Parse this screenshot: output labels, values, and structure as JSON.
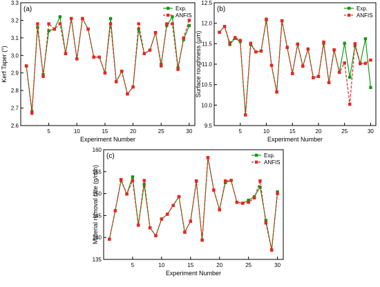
{
  "colors": {
    "exp": "#119911",
    "anfis": "#ee2222",
    "axis": "#000000"
  },
  "chart_data": [
    {
      "type": "line",
      "panel_label": "(a)",
      "xlabel": "Experiment Number",
      "ylabel": "Kerf Taper (°)",
      "xlim": [
        0,
        31
      ],
      "ylim": [
        2.6,
        3.3
      ],
      "xticks": [
        5,
        10,
        15,
        20,
        25,
        30
      ],
      "yticks": [
        2.6,
        2.7,
        2.8,
        2.9,
        3.0,
        3.1,
        3.2,
        3.3
      ],
      "ytick_decimals": 1,
      "legend_position": "top-right",
      "x": [
        1,
        2,
        3,
        4,
        5,
        6,
        7,
        8,
        9,
        10,
        11,
        12,
        13,
        14,
        15,
        16,
        17,
        18,
        19,
        20,
        21,
        22,
        23,
        24,
        25,
        26,
        27,
        28,
        29,
        30
      ],
      "series": [
        {
          "name": "Exp.",
          "color": "#119911",
          "marker": "square",
          "line": "solid",
          "values": [
            2.94,
            2.68,
            3.16,
            2.89,
            3.14,
            3.15,
            3.22,
            3.01,
            3.21,
            2.98,
            3.21,
            3.15,
            2.99,
            2.99,
            2.9,
            3.21,
            2.85,
            2.91,
            2.78,
            2.82,
            3.15,
            3.01,
            3.03,
            3.13,
            2.95,
            3.17,
            3.22,
            2.93,
            3.09,
            3.17
          ]
        },
        {
          "name": "ANFIS",
          "color": "#ee2222",
          "marker": "square",
          "line": "dashed",
          "values": [
            2.94,
            2.67,
            3.18,
            2.88,
            3.18,
            3.15,
            3.18,
            3.01,
            3.21,
            2.98,
            3.21,
            3.15,
            2.99,
            2.99,
            2.9,
            3.18,
            2.85,
            2.91,
            2.78,
            2.82,
            3.18,
            3.01,
            3.03,
            3.13,
            2.94,
            3.18,
            3.18,
            2.92,
            3.1,
            3.2
          ]
        }
      ]
    },
    {
      "type": "line",
      "panel_label": "(b)",
      "xlabel": "Experiment Number",
      "ylabel": "Surface roughness (µm)",
      "xlim": [
        0,
        31
      ],
      "ylim": [
        9.5,
        12.5
      ],
      "xticks": [
        5,
        10,
        15,
        20,
        25,
        30
      ],
      "yticks": [
        9.5,
        10.0,
        10.5,
        11.0,
        11.5,
        12.0,
        12.5
      ],
      "ytick_decimals": 1,
      "legend_position": "top-right",
      "x": [
        1,
        2,
        3,
        4,
        5,
        6,
        7,
        8,
        9,
        10,
        11,
        12,
        13,
        14,
        15,
        16,
        17,
        18,
        19,
        20,
        21,
        22,
        23,
        24,
        25,
        26,
        27,
        28,
        29,
        30
      ],
      "series": [
        {
          "name": "Exp.",
          "color": "#119911",
          "marker": "square",
          "line": "solid",
          "values": [
            11.78,
            11.92,
            11.48,
            11.63,
            11.55,
            9.76,
            11.48,
            11.3,
            11.32,
            12.08,
            10.97,
            10.32,
            12.06,
            11.41,
            10.77,
            11.49,
            10.95,
            11.37,
            10.67,
            10.7,
            11.51,
            10.55,
            11.35,
            10.8,
            11.51,
            10.68,
            11.45,
            11.01,
            11.62,
            10.43
          ]
        },
        {
          "name": "ANFIS",
          "color": "#ee2222",
          "marker": "square",
          "line": "dashed",
          "values": [
            11.78,
            11.92,
            11.52,
            11.65,
            11.58,
            9.76,
            11.51,
            11.3,
            11.32,
            12.1,
            10.97,
            10.32,
            12.06,
            11.41,
            10.77,
            11.49,
            10.95,
            11.37,
            10.67,
            10.7,
            11.54,
            10.55,
            11.35,
            10.8,
            11.03,
            10.02,
            11.5,
            11.02,
            11.02,
            11.1
          ]
        }
      ]
    },
    {
      "type": "line",
      "panel_label": "(c)",
      "xlabel": "Experiment Number",
      "ylabel": "Material removal rate (g/min)",
      "xlim": [
        0,
        31
      ],
      "ylim": [
        135,
        160
      ],
      "xticks": [
        5,
        10,
        15,
        20,
        25,
        30
      ],
      "yticks": [
        135,
        140,
        145,
        150,
        155,
        160
      ],
      "ytick_decimals": 0,
      "legend_position": "top-right",
      "x": [
        1,
        2,
        3,
        4,
        5,
        6,
        7,
        8,
        9,
        10,
        11,
        12,
        13,
        14,
        15,
        16,
        17,
        18,
        19,
        20,
        21,
        22,
        23,
        24,
        25,
        26,
        27,
        28,
        29,
        30
      ],
      "series": [
        {
          "name": "Exp.",
          "color": "#119911",
          "marker": "square",
          "line": "solid",
          "values": [
            139.6,
            146.1,
            153.0,
            149.9,
            153.8,
            142.8,
            152.1,
            142.2,
            140.4,
            144.2,
            145.3,
            147.3,
            149.3,
            141.2,
            143.7,
            152.8,
            139.4,
            158.2,
            150.8,
            146.3,
            152.5,
            153.0,
            148.0,
            147.8,
            148.5,
            149.3,
            151.5,
            143.9,
            137.2,
            150.4
          ]
        },
        {
          "name": "ANFIS",
          "color": "#ee2222",
          "marker": "square",
          "line": "dashed",
          "values": [
            139.6,
            146.1,
            153.2,
            149.9,
            153.0,
            142.8,
            153.0,
            142.2,
            140.4,
            144.2,
            145.3,
            147.3,
            149.3,
            141.2,
            143.7,
            152.9,
            139.4,
            158.2,
            150.8,
            146.3,
            152.9,
            153.0,
            148.0,
            147.8,
            148.0,
            149.0,
            152.9,
            143.3,
            137.1,
            150.0
          ]
        }
      ]
    }
  ]
}
